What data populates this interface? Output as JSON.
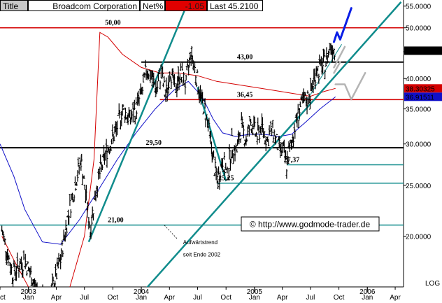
{
  "header": {
    "title_tab": "Title",
    "company": "Broadcom Corporation",
    "metric_label": "Net%",
    "change_value": "-1.05",
    "last_label": "Last 45.2100"
  },
  "colors": {
    "price": "#000000",
    "ma_red": "#d40000",
    "ma_blue": "#1010c8",
    "trend": "#108c8c",
    "forecast_blue": "#0a1ee6",
    "forecast_gray": "#b4b4b4",
    "change_bg": "#e00000",
    "red_label_bg": "#d40000",
    "blue_label_bg": "#1010c8",
    "current_bg": "#000000"
  },
  "chart_data": {
    "type": "candlestick",
    "title": "Broadcom Corporation",
    "ylim": [
      16.0,
      56.5
    ],
    "y_axis": {
      "position": "right",
      "tick_values": [
        20,
        25,
        30,
        35,
        40,
        45,
        50,
        55
      ],
      "tick_labels": [
        "20.0000",
        "25.0000",
        "30.0000",
        "35.0000",
        "40.0000",
        "45.0000",
        "50.0000",
        "55.0000"
      ],
      "scale_label": "LOG"
    },
    "x_axis": {
      "range": [
        "2002-10-01",
        "2006-04-28"
      ],
      "months": [
        {
          "label": "Oct",
          "date": "2002-10-01"
        },
        {
          "label": "Jan",
          "date": "2003-01-01"
        },
        {
          "label": "Apr",
          "date": "2003-04-01"
        },
        {
          "label": "Jul",
          "date": "2003-07-01"
        },
        {
          "label": "Oct",
          "date": "2003-10-01"
        },
        {
          "label": "Jan",
          "date": "2004-01-01"
        },
        {
          "label": "Apr",
          "date": "2004-04-01"
        },
        {
          "label": "Jul",
          "date": "2004-07-01"
        },
        {
          "label": "Oct",
          "date": "2004-10-01"
        },
        {
          "label": "Jan",
          "date": "2005-01-01"
        },
        {
          "label": "Apr",
          "date": "2005-04-01"
        },
        {
          "label": "Jul",
          "date": "2005-07-01"
        },
        {
          "label": "Oct",
          "date": "2005-10-01"
        },
        {
          "label": "Jan",
          "date": "2006-01-01"
        },
        {
          "label": "Apr",
          "date": "2006-04-01"
        }
      ],
      "years": [
        {
          "label": "2003",
          "date": "2003-01-01"
        },
        {
          "label": "2004",
          "date": "2004-01-01"
        },
        {
          "label": "2005",
          "date": "2005-01-01"
        },
        {
          "label": "2006",
          "date": "2006-01-01"
        }
      ]
    },
    "price_path": [
      {
        "date": "2002-10-07",
        "close": 20.5
      },
      {
        "date": "2002-11-10",
        "close": 17.0
      },
      {
        "date": "2002-12-20",
        "close": 18.0
      },
      {
        "date": "2003-02-01",
        "close": 15.5
      },
      {
        "date": "2003-03-10",
        "close": 15.0
      },
      {
        "date": "2003-04-15",
        "close": 18.0
      },
      {
        "date": "2003-05-10",
        "close": 22.0
      },
      {
        "date": "2003-06-01",
        "close": 25.0
      },
      {
        "date": "2003-06-20",
        "close": 28.0
      },
      {
        "date": "2003-07-05",
        "close": 24.0
      },
      {
        "date": "2003-07-20",
        "close": 20.5
      },
      {
        "date": "2003-08-10",
        "close": 25.0
      },
      {
        "date": "2003-09-10",
        "close": 29.0
      },
      {
        "date": "2003-10-10",
        "close": 31.5
      },
      {
        "date": "2003-11-01",
        "close": 35.0
      },
      {
        "date": "2003-11-25",
        "close": 33.5
      },
      {
        "date": "2003-12-15",
        "close": 35.0
      },
      {
        "date": "2004-01-05",
        "close": 38.0
      },
      {
        "date": "2004-01-20",
        "close": 42.0
      },
      {
        "date": "2004-02-05",
        "close": 40.0
      },
      {
        "date": "2004-02-20",
        "close": 38.0
      },
      {
        "date": "2004-03-05",
        "close": 41.0
      },
      {
        "date": "2004-03-20",
        "close": 37.0
      },
      {
        "date": "2004-04-05",
        "close": 41.5
      },
      {
        "date": "2004-04-20",
        "close": 38.0
      },
      {
        "date": "2004-05-05",
        "close": 41.0
      },
      {
        "date": "2004-05-25",
        "close": 39.0
      },
      {
        "date": "2004-06-10",
        "close": 45.0
      },
      {
        "date": "2004-06-25",
        "close": 41.0
      },
      {
        "date": "2004-07-10",
        "close": 37.0
      },
      {
        "date": "2004-07-25",
        "close": 35.0
      },
      {
        "date": "2004-08-10",
        "close": 31.0
      },
      {
        "date": "2004-08-25",
        "close": 27.0
      },
      {
        "date": "2004-09-05",
        "close": 25.5
      },
      {
        "date": "2004-09-20",
        "close": 28.0
      },
      {
        "date": "2004-10-05",
        "close": 26.0
      },
      {
        "date": "2004-10-20",
        "close": 30.0
      },
      {
        "date": "2004-11-05",
        "close": 29.0
      },
      {
        "date": "2004-11-20",
        "close": 32.5
      },
      {
        "date": "2004-12-05",
        "close": 30.5
      },
      {
        "date": "2004-12-20",
        "close": 33.0
      },
      {
        "date": "2005-01-10",
        "close": 31.0
      },
      {
        "date": "2005-01-25",
        "close": 32.5
      },
      {
        "date": "2005-02-10",
        "close": 30.5
      },
      {
        "date": "2005-03-01",
        "close": 32.0
      },
      {
        "date": "2005-03-20",
        "close": 29.5
      },
      {
        "date": "2005-04-05",
        "close": 29.0
      },
      {
        "date": "2005-04-15",
        "close": 27.4
      },
      {
        "date": "2005-04-30",
        "close": 30.0
      },
      {
        "date": "2005-05-15",
        "close": 33.0
      },
      {
        "date": "2005-06-01",
        "close": 35.5
      },
      {
        "date": "2005-06-20",
        "close": 36.5
      },
      {
        "date": "2005-07-05",
        "close": 38.0
      },
      {
        "date": "2005-07-20",
        "close": 41.5
      },
      {
        "date": "2005-08-05",
        "close": 42.0
      },
      {
        "date": "2005-08-20",
        "close": 43.0
      },
      {
        "date": "2005-09-05",
        "close": 46.5
      },
      {
        "date": "2005-09-20",
        "close": 45.2
      }
    ],
    "series": [
      {
        "name": "38.30325",
        "kind": "moving_average",
        "color": "#d40000",
        "points": [
          {
            "date": "2002-10-07",
            "value": 20.0
          },
          {
            "date": "2002-11-15",
            "value": 18.0
          },
          {
            "date": "2003-01-01",
            "value": 16.0
          },
          {
            "date": "2003-03-15",
            "value": 14.5
          },
          {
            "date": "2003-05-15",
            "value": 16.0
          },
          {
            "date": "2003-07-01",
            "value": 20.0
          },
          {
            "date": "2003-08-01",
            "value": 28.0
          },
          {
            "date": "2003-08-20",
            "value": 49.0
          },
          {
            "date": "2003-09-15",
            "value": 48.0
          },
          {
            "date": "2003-11-01",
            "value": 44.5
          },
          {
            "date": "2004-01-01",
            "value": 42.0
          },
          {
            "date": "2004-03-01",
            "value": 41.0
          },
          {
            "date": "2004-05-01",
            "value": 41.0
          },
          {
            "date": "2004-07-01",
            "value": 40.5
          },
          {
            "date": "2004-09-01",
            "value": 39.5
          },
          {
            "date": "2004-11-01",
            "value": 39.0
          },
          {
            "date": "2005-01-01",
            "value": 38.5
          },
          {
            "date": "2005-03-01",
            "value": 38.0
          },
          {
            "date": "2005-05-01",
            "value": 37.5
          },
          {
            "date": "2005-07-01",
            "value": 37.0
          },
          {
            "date": "2005-08-15",
            "value": 37.8
          },
          {
            "date": "2005-09-20",
            "value": 38.3
          }
        ]
      },
      {
        "name": "36.91511",
        "kind": "moving_average",
        "color": "#1010c8",
        "points": [
          {
            "date": "2002-10-01",
            "value": 30.0
          },
          {
            "date": "2002-11-15",
            "value": 26.0
          },
          {
            "date": "2002-12-20",
            "value": 22.5
          },
          {
            "date": "2003-02-15",
            "value": 19.5
          },
          {
            "date": "2003-04-15",
            "value": 19.3
          },
          {
            "date": "2003-06-15",
            "value": 21.5
          },
          {
            "date": "2003-08-15",
            "value": 24.5
          },
          {
            "date": "2003-10-15",
            "value": 28.0
          },
          {
            "date": "2003-12-15",
            "value": 31.5
          },
          {
            "date": "2004-02-15",
            "value": 35.0
          },
          {
            "date": "2004-04-15",
            "value": 38.0
          },
          {
            "date": "2004-06-01",
            "value": 39.5
          },
          {
            "date": "2004-07-15",
            "value": 37.0
          },
          {
            "date": "2004-08-20",
            "value": 33.5
          },
          {
            "date": "2004-09-20",
            "value": 31.5
          },
          {
            "date": "2004-11-01",
            "value": 31.0
          },
          {
            "date": "2004-12-15",
            "value": 31.3
          },
          {
            "date": "2005-02-01",
            "value": 31.3
          },
          {
            "date": "2005-03-20",
            "value": 31.0
          },
          {
            "date": "2005-05-01",
            "value": 31.3
          },
          {
            "date": "2005-06-15",
            "value": 33.0
          },
          {
            "date": "2005-08-01",
            "value": 35.0
          },
          {
            "date": "2005-09-20",
            "value": 36.9
          }
        ]
      }
    ],
    "levels": [
      {
        "value": 50.0,
        "label": "50,00",
        "style": "red",
        "label_date": "2003-10-01"
      },
      {
        "value": 43.0,
        "label": "43,00",
        "style": "black-thick",
        "label_date": "2004-12-01",
        "from": "2004-01-01"
      },
      {
        "value": 36.45,
        "label": "36,45",
        "style": "red",
        "label_date": "2004-12-01",
        "from": "2004-03-01"
      },
      {
        "value": 29.5,
        "label": "29,50",
        "style": "black-thick",
        "label_date": "2004-02-10"
      },
      {
        "value": 27.37,
        "label": "27,37",
        "style": "teal",
        "label_date": "2005-05-01",
        "from": "2005-04-15"
      },
      {
        "value": 25.25,
        "label": "25,25",
        "style": "teal",
        "label_date": "2004-10-01",
        "from": "2004-09-01"
      },
      {
        "value": 21.0,
        "label": "21,00",
        "style": "teal",
        "label_date": "2003-10-10"
      }
    ],
    "trendlines": [
      {
        "style": "teal",
        "from": {
          "date": "2003-07-15",
          "value": 19.5
        },
        "to": {
          "date": "2004-05-20",
          "value": 54.0
        }
      },
      {
        "style": "teal",
        "from": {
          "date": "2003-12-10",
          "value": 15.0
        },
        "to": {
          "date": "2006-04-20",
          "value": 56.0
        }
      },
      {
        "style": "teal",
        "from": {
          "date": "2004-07-01",
          "value": 38.5
        },
        "to": {
          "date": "2004-10-01",
          "value": 25.5
        }
      },
      {
        "style": "teal-thin",
        "from": {
          "date": "2005-06-15",
          "value": 36.0
        },
        "to": {
          "date": "2005-10-10",
          "value": 46.5
        }
      }
    ],
    "forecast_paths": [
      {
        "style": "blue",
        "points": [
          {
            "date": "2005-09-15",
            "value": 47.0
          },
          {
            "date": "2005-09-25",
            "value": 49.0
          },
          {
            "date": "2005-10-05",
            "value": 47.5
          },
          {
            "date": "2005-11-10",
            "value": 54.5
          }
        ]
      },
      {
        "style": "gray",
        "points": [
          {
            "date": "2005-09-15",
            "value": 42.0
          },
          {
            "date": "2005-10-20",
            "value": 46.0
          }
        ]
      },
      {
        "style": "gray",
        "points": [
          {
            "date": "2005-09-15",
            "value": 41.0
          },
          {
            "date": "2005-10-05",
            "value": 43.0
          }
        ]
      },
      {
        "style": "gray",
        "points": [
          {
            "date": "2005-09-20",
            "value": 39.0
          },
          {
            "date": "2005-10-20",
            "value": 39.0
          },
          {
            "date": "2005-11-10",
            "value": 36.5
          },
          {
            "date": "2005-12-25",
            "value": 41.0
          }
        ]
      }
    ],
    "value_labels": [
      {
        "text": "45.2100",
        "value": 45.21,
        "style": "current"
      },
      {
        "text": "38.30325",
        "value": 38.30325,
        "style": "red"
      },
      {
        "text": "36.91511",
        "value": 36.91511,
        "style": "blue"
      }
    ],
    "annotations": [
      {
        "text": "Aufwärtstrend",
        "date": "2004-05-15",
        "value": 19.3
      },
      {
        "text": "seit Ende 2002",
        "date": "2004-05-15",
        "value": 18.3
      }
    ],
    "watermark": "© http://www.godmode-trader.de",
    "grid": false
  }
}
